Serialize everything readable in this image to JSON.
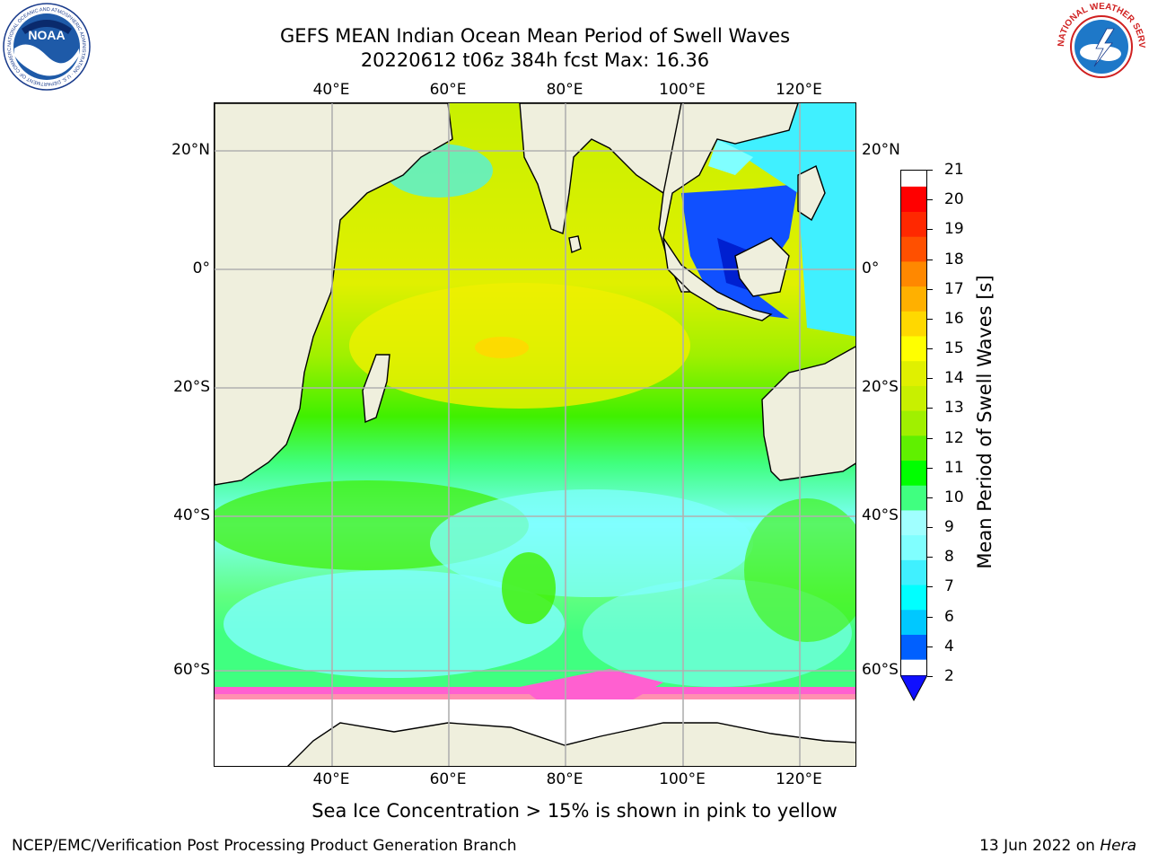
{
  "title": {
    "line1": "GEFS MEAN Indian Ocean Mean Period of Swell Waves",
    "line2": "20220612 t06z 384h fcst   Max: 16.36"
  },
  "map": {
    "projection": "cylindrical",
    "lon_range": [
      20,
      130
    ],
    "lat_range": [
      -85,
      28
    ],
    "lon_ticks": [
      "40°E",
      "60°E",
      "80°E",
      "100°E",
      "120°E"
    ],
    "lat_ticks": [
      "20°N",
      "0°",
      "20°S",
      "40°S",
      "60°S"
    ],
    "ocean_fill": "green-yellow-cyan swell period field",
    "land_color": "#efefdd",
    "grid": true
  },
  "colorbar": {
    "label": "Mean Period of Swell Waves [s]",
    "ticks": [
      "2",
      "4",
      "6",
      "7",
      "8",
      "9",
      "10",
      "11",
      "12",
      "13",
      "14",
      "15",
      "16",
      "17",
      "18",
      "19",
      "20",
      "21"
    ],
    "colors": [
      "#0060ff",
      "#00c8ff",
      "#00ffff",
      "#40f0ff",
      "#80ffff",
      "#a0ffff",
      "#40ff80",
      "#00ff00",
      "#60f000",
      "#a0f000",
      "#c8f000",
      "#e0f000",
      "#ffff00",
      "#ffd800",
      "#ffb000",
      "#ff8800",
      "#ff5000",
      "#ff2800",
      "#ff0000"
    ],
    "extend_color": "#1010ff"
  },
  "caption": "Sea Ice Concentration > 15% is shown in pink to yellow",
  "footer": {
    "left": "NCEP/EMC/Verification Post Processing Product Generation Branch",
    "right_date": "13 Jun 2022 on",
    "right_host": "Hera"
  },
  "logos": {
    "noaa": {
      "text": "NOAA",
      "ring_text": "NATIONAL OCEANIC AND ATMOSPHERIC ADMINISTRATION · U.S. DEPARTMENT OF COMMERCE"
    },
    "nws": {
      "ring_text": "NATIONAL WEATHER SERVICE"
    }
  }
}
